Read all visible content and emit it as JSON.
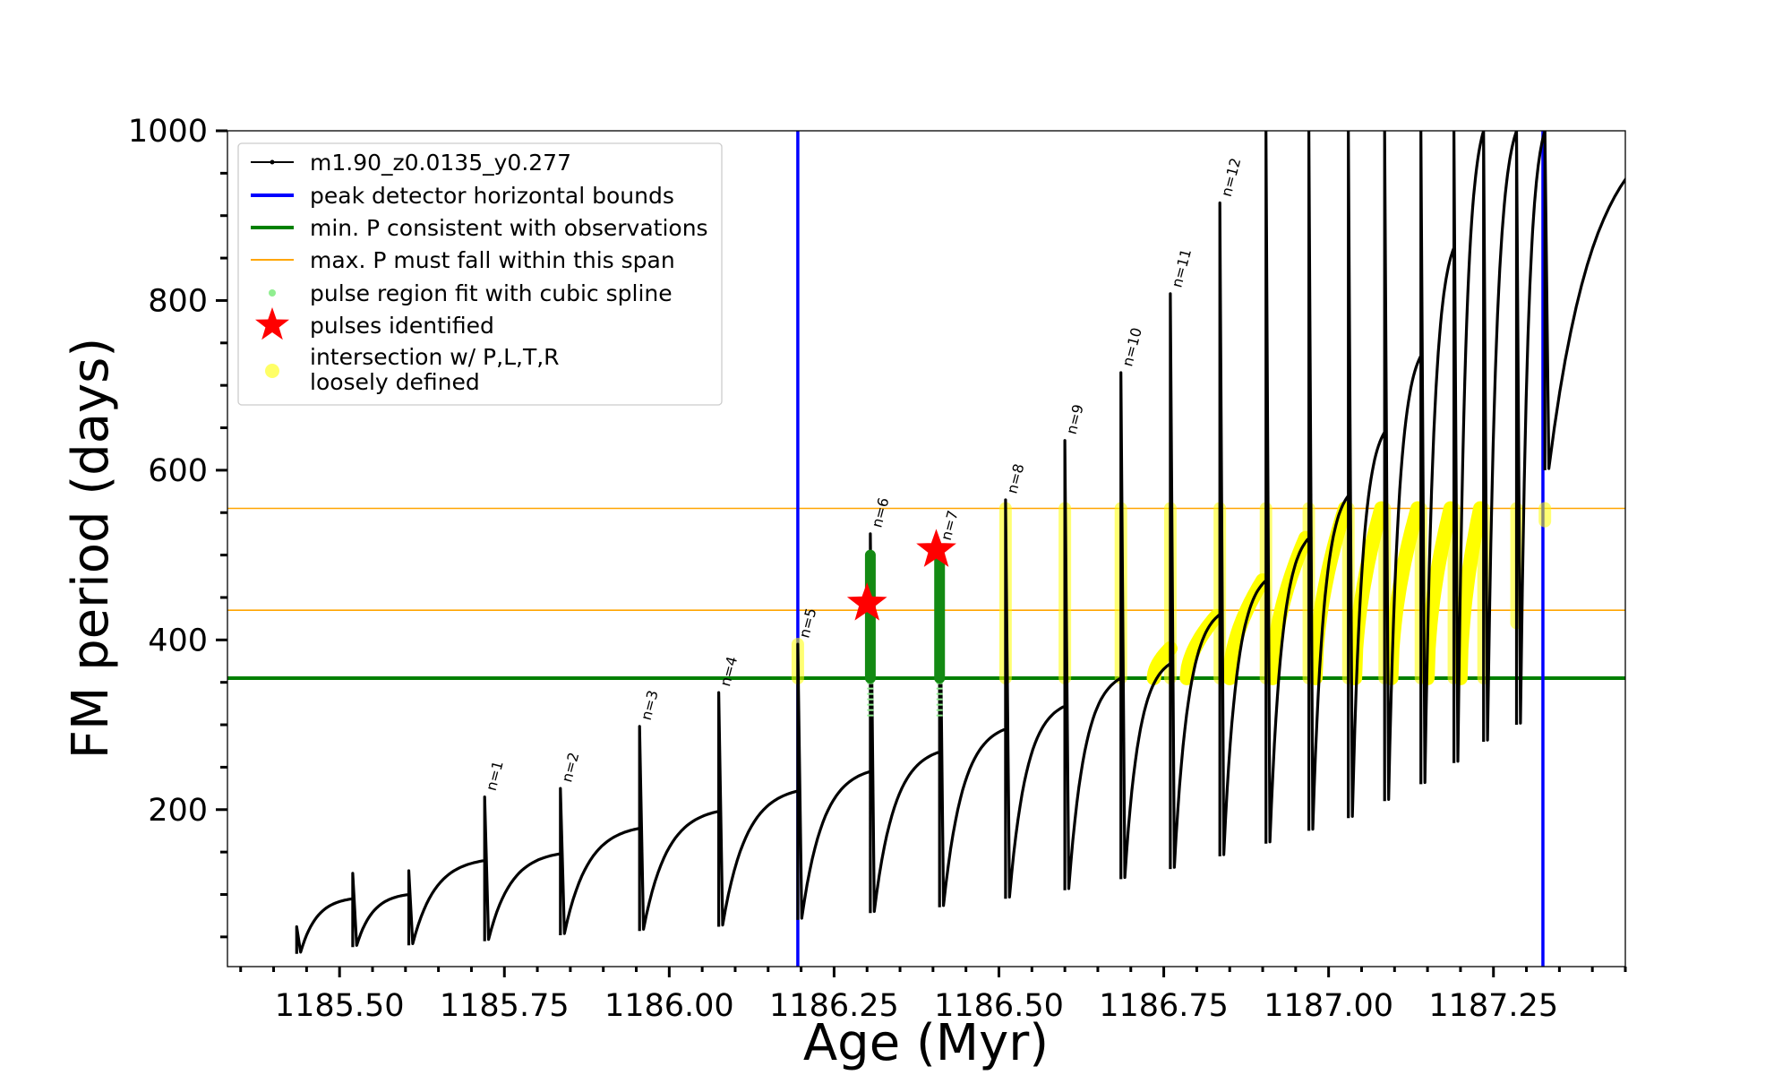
{
  "chart_data": {
    "type": "line",
    "xlabel": "Age (Myr)",
    "ylabel": "FM period (days)",
    "xlim": [
      1185.33,
      1187.45
    ],
    "ylim": [
      15,
      1000
    ],
    "xticks": [
      1185.5,
      1185.75,
      1186.0,
      1186.25,
      1186.5,
      1186.75,
      1187.0,
      1187.25
    ],
    "xtick_labels": [
      "1185.50",
      "1185.75",
      "1186.00",
      "1186.25",
      "1186.50",
      "1186.75",
      "1187.00",
      "1187.25"
    ],
    "yticks": [
      200,
      400,
      600,
      800,
      1000
    ],
    "ytick_labels": [
      "200",
      "400",
      "600",
      "800",
      "1000"
    ],
    "grid": false,
    "legend_position": "upper-left",
    "legend": [
      {
        "label": "m1.90_z0.0135_y0.277",
        "marker": "line-dot",
        "color": "#000000"
      },
      {
        "label": "peak detector horizontal bounds",
        "marker": "line",
        "color": "#0000ff"
      },
      {
        "label": "min. P consistent with observations",
        "marker": "line",
        "color": "#008000"
      },
      {
        "label": "max. P must fall within this span",
        "marker": "line",
        "color": "#ffa500"
      },
      {
        "label": "pulse region fit with cubic spline",
        "marker": "dot",
        "color": "#90ee90"
      },
      {
        "label": "pulses identified",
        "marker": "star",
        "color": "#ff0000"
      },
      {
        "label": "intersection w/ P,L,T,R",
        "label2": "loosely defined",
        "marker": "dot",
        "color": "#ffff66"
      }
    ],
    "vertical_lines": {
      "color": "#0000ff",
      "x": [
        1186.195,
        1187.325
      ]
    },
    "horizontal_lines": [
      {
        "y": 355,
        "color": "#008000",
        "role": "min"
      },
      {
        "y": 435,
        "color": "#ffa500",
        "role": "span-low"
      },
      {
        "y": 555,
        "color": "#ffa500",
        "role": "span-high"
      }
    ],
    "pulses": [
      {
        "t": 1185.435,
        "floor": 30,
        "peak": 62
      },
      {
        "t": 1185.52,
        "floor": 38,
        "peak": 125
      },
      {
        "t": 1185.605,
        "floor": 40,
        "peak": 128
      },
      {
        "t": 1185.72,
        "floor": 45,
        "peak": 215,
        "label": "n=1"
      },
      {
        "t": 1185.835,
        "floor": 52,
        "peak": 225,
        "label": "n=2"
      },
      {
        "t": 1185.955,
        "floor": 57,
        "peak": 298,
        "label": "n=3"
      },
      {
        "t": 1186.075,
        "floor": 62,
        "peak": 338,
        "label": "n=4"
      },
      {
        "t": 1186.195,
        "floor": 70,
        "peak": 395,
        "label": "n=5"
      },
      {
        "t": 1186.305,
        "floor": 78,
        "peak": 525,
        "label": "n=6"
      },
      {
        "t": 1186.41,
        "floor": 85,
        "peak": 510,
        "label": "n=7"
      },
      {
        "t": 1186.51,
        "floor": 95,
        "peak": 565,
        "label": "n=8"
      },
      {
        "t": 1186.6,
        "floor": 105,
        "peak": 635,
        "label": "n=9"
      },
      {
        "t": 1186.685,
        "floor": 118,
        "peak": 715,
        "label": "n=10"
      },
      {
        "t": 1186.76,
        "floor": 130,
        "peak": 808,
        "label": "n=11"
      },
      {
        "t": 1186.835,
        "floor": 145,
        "peak": 915,
        "label": "n=12"
      },
      {
        "t": 1186.905,
        "floor": 160,
        "peak": 1000
      },
      {
        "t": 1186.97,
        "floor": 175,
        "peak": 1000
      },
      {
        "t": 1187.03,
        "floor": 190,
        "peak": 1000
      },
      {
        "t": 1187.085,
        "floor": 210,
        "peak": 1000
      },
      {
        "t": 1187.14,
        "floor": 230,
        "peak": 1000
      },
      {
        "t": 1187.19,
        "floor": 255,
        "peak": 1000
      },
      {
        "t": 1187.235,
        "floor": 280,
        "peak": 1000
      },
      {
        "t": 1187.285,
        "floor": 300,
        "peak": 1000
      },
      {
        "t": 1187.328,
        "floor": 600,
        "peak": 1000
      }
    ],
    "spline_fits": [
      {
        "t": 1186.305,
        "ymin": 310,
        "ymax": 500
      },
      {
        "t": 1186.41,
        "ymin": 310,
        "ymax": 500
      }
    ],
    "pulses_identified": [
      {
        "x": 1186.3,
        "y": 443
      },
      {
        "x": 1186.405,
        "y": 506
      }
    ],
    "intersection_regions": [
      {
        "x": 1186.195,
        "y0": 355,
        "y1": 395
      },
      {
        "x": 1186.51,
        "y0": 355,
        "y1": 555
      },
      {
        "x": 1186.6,
        "y0": 355,
        "y1": 555
      },
      {
        "x": 1186.685,
        "y0": 355,
        "y1": 555
      },
      {
        "x": 1186.76,
        "y0": 355,
        "y1": 555
      },
      {
        "x": 1186.835,
        "y0": 355,
        "y1": 555
      },
      {
        "x": 1186.905,
        "y0": 355,
        "y1": 555
      },
      {
        "x": 1186.97,
        "y0": 355,
        "y1": 555
      },
      {
        "x": 1187.03,
        "y0": 355,
        "y1": 555
      },
      {
        "x": 1187.085,
        "y0": 355,
        "y1": 555
      },
      {
        "x": 1187.14,
        "y0": 355,
        "y1": 555
      },
      {
        "x": 1187.19,
        "y0": 355,
        "y1": 555
      },
      {
        "x": 1187.235,
        "y0": 355,
        "y1": 555
      },
      {
        "x": 1187.285,
        "y0": 420,
        "y1": 555
      },
      {
        "x": 1187.328,
        "y0": 540,
        "y1": 555
      }
    ],
    "intersection_arcs": [
      {
        "x0": 1186.735,
        "x1": 1186.76,
        "y0": 355,
        "y1": 390
      },
      {
        "x0": 1186.785,
        "x1": 1186.83,
        "y0": 355,
        "y1": 428
      },
      {
        "x0": 1186.85,
        "x1": 1186.9,
        "y0": 355,
        "y1": 470
      },
      {
        "x0": 1186.915,
        "x1": 1186.965,
        "y0": 355,
        "y1": 520
      },
      {
        "x0": 1186.98,
        "x1": 1187.025,
        "y0": 355,
        "y1": 555
      },
      {
        "x0": 1187.04,
        "x1": 1187.08,
        "y0": 355,
        "y1": 555
      },
      {
        "x0": 1187.095,
        "x1": 1187.135,
        "y0": 355,
        "y1": 555
      },
      {
        "x0": 1187.15,
        "x1": 1187.185,
        "y0": 355,
        "y1": 555
      },
      {
        "x0": 1187.2,
        "x1": 1187.23,
        "y0": 355,
        "y1": 555
      }
    ]
  }
}
